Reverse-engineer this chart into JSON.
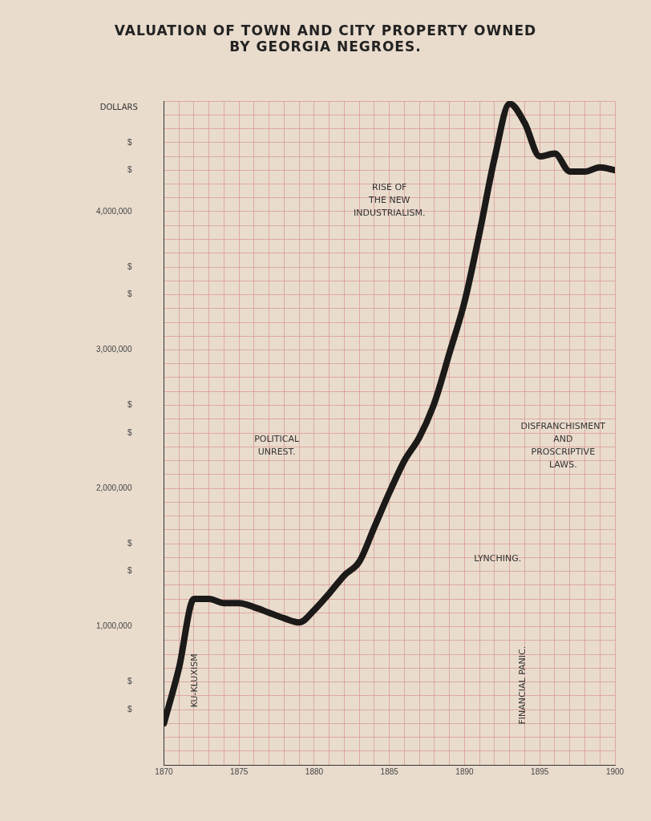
{
  "chart_data": {
    "type": "line",
    "title": "VALUATION OF TOWN AND CITY PROPERTY OWNED\nBY GEORGIA NEGROES.",
    "ylabel": "DOLLARS",
    "x": [
      1870,
      1871,
      1872,
      1873,
      1874,
      1875,
      1876,
      1877,
      1878,
      1879,
      1880,
      1881,
      1882,
      1883,
      1884,
      1885,
      1886,
      1887,
      1888,
      1889,
      1890,
      1891,
      1892,
      1893,
      1894,
      1895,
      1896,
      1897,
      1898,
      1899,
      1900
    ],
    "series": [
      {
        "color": "#1c1a18",
        "values": [
          300000,
          700000,
          1200000,
          1200000,
          1170000,
          1170000,
          1140000,
          1100000,
          1060000,
          1030000,
          1120000,
          1240000,
          1370000,
          1470000,
          1720000,
          1970000,
          2200000,
          2370000,
          2620000,
          2980000,
          3350000,
          3850000,
          4390000,
          4780000,
          4640000,
          4400000,
          4420000,
          4290000,
          4290000,
          4320000,
          4300000
        ]
      }
    ],
    "xlim": [
      1870,
      1900
    ],
    "ylim": [
      0,
      4800000
    ],
    "xticks": [
      1870,
      {
        "value": 1871,
        "label": null
      },
      {
        "value": 1872,
        "label": null
      },
      {
        "value": 1873,
        "label": null
      },
      {
        "value": 1874,
        "label": null
      },
      1875,
      {
        "value": 1876,
        "label": null
      },
      {
        "value": 1877,
        "label": null
      },
      {
        "value": 1878,
        "label": null
      },
      {
        "value": 1879,
        "label": null
      },
      1880,
      {
        "value": 1881,
        "label": null
      },
      {
        "value": 1882,
        "label": null
      },
      {
        "value": 1883,
        "label": null
      },
      {
        "value": 1884,
        "label": null
      },
      1885,
      {
        "value": 1886,
        "label": null
      },
      {
        "value": 1887,
        "label": null
      },
      {
        "value": 1888,
        "label": null
      },
      {
        "value": 1889,
        "label": null
      },
      1890,
      {
        "value": 1891,
        "label": null
      },
      {
        "value": 1892,
        "label": null
      },
      {
        "value": 1893,
        "label": null
      },
      {
        "value": 1894,
        "label": null
      },
      1895,
      {
        "value": 1896,
        "label": null
      },
      {
        "value": 1897,
        "label": null
      },
      {
        "value": 1898,
        "label": null
      },
      {
        "value": 1899,
        "label": null
      },
      1900
    ],
    "yticks": [
      {
        "value": 0,
        "label": null
      },
      {
        "value": 100000,
        "label": null
      },
      {
        "value": 200000,
        "label": null
      },
      {
        "value": 300000,
        "label": null
      },
      {
        "value": 400000,
        "label": "$"
      },
      {
        "value": 500000,
        "label": null
      },
      {
        "value": 600000,
        "label": "$"
      },
      {
        "value": 700000,
        "label": null
      },
      {
        "value": 800000,
        "label": null
      },
      {
        "value": 900000,
        "label": null
      },
      {
        "value": 1000000,
        "label": "1,000,000"
      },
      {
        "value": 1100000,
        "label": null
      },
      {
        "value": 1200000,
        "label": null
      },
      {
        "value": 1300000,
        "label": null
      },
      {
        "value": 1400000,
        "label": "$"
      },
      {
        "value": 1500000,
        "label": null
      },
      {
        "value": 1600000,
        "label": "$"
      },
      {
        "value": 1700000,
        "label": null
      },
      {
        "value": 1800000,
        "label": null
      },
      {
        "value": 1900000,
        "label": null
      },
      {
        "value": 2000000,
        "label": "2,000,000"
      },
      {
        "value": 2100000,
        "label": null
      },
      {
        "value": 2200000,
        "label": null
      },
      {
        "value": 2300000,
        "label": null
      },
      {
        "value": 2400000,
        "label": "$"
      },
      {
        "value": 2500000,
        "label": null
      },
      {
        "value": 2600000,
        "label": "$"
      },
      {
        "value": 2700000,
        "label": null
      },
      {
        "value": 2800000,
        "label": null
      },
      {
        "value": 2900000,
        "label": null
      },
      {
        "value": 3000000,
        "label": "3,000,000"
      },
      {
        "value": 3100000,
        "label": null
      },
      {
        "value": 3200000,
        "label": null
      },
      {
        "value": 3300000,
        "label": null
      },
      {
        "value": 3400000,
        "label": "$"
      },
      {
        "value": 3500000,
        "label": null
      },
      {
        "value": 3600000,
        "label": "$"
      },
      {
        "value": 3700000,
        "label": null
      },
      {
        "value": 3800000,
        "label": null
      },
      {
        "value": 3900000,
        "label": null
      },
      {
        "value": 4000000,
        "label": "4,000,000"
      },
      {
        "value": 4100000,
        "label": null
      },
      {
        "value": 4200000,
        "label": null
      },
      {
        "value": 4300000,
        "label": "$"
      },
      {
        "value": 4400000,
        "label": null
      },
      {
        "value": 4500000,
        "label": "$"
      },
      {
        "value": 4600000,
        "label": null
      },
      {
        "value": 4700000,
        "label": null
      },
      {
        "value": 4800000,
        "label": null
      }
    ],
    "grid": true,
    "legend": false,
    "marker": "none",
    "line_style": "solid",
    "annotations": [
      "KU-KLUXISM",
      "POLITICAL\nUNREST.",
      "RISE OF\nTHE NEW\nINDUSTRIALISM.",
      "LYNCHING.",
      "DISFRANCHISMENT\nAND\nPROSCRIPTIVE\nLAWS.",
      "FINANCIAL PANIC."
    ]
  }
}
